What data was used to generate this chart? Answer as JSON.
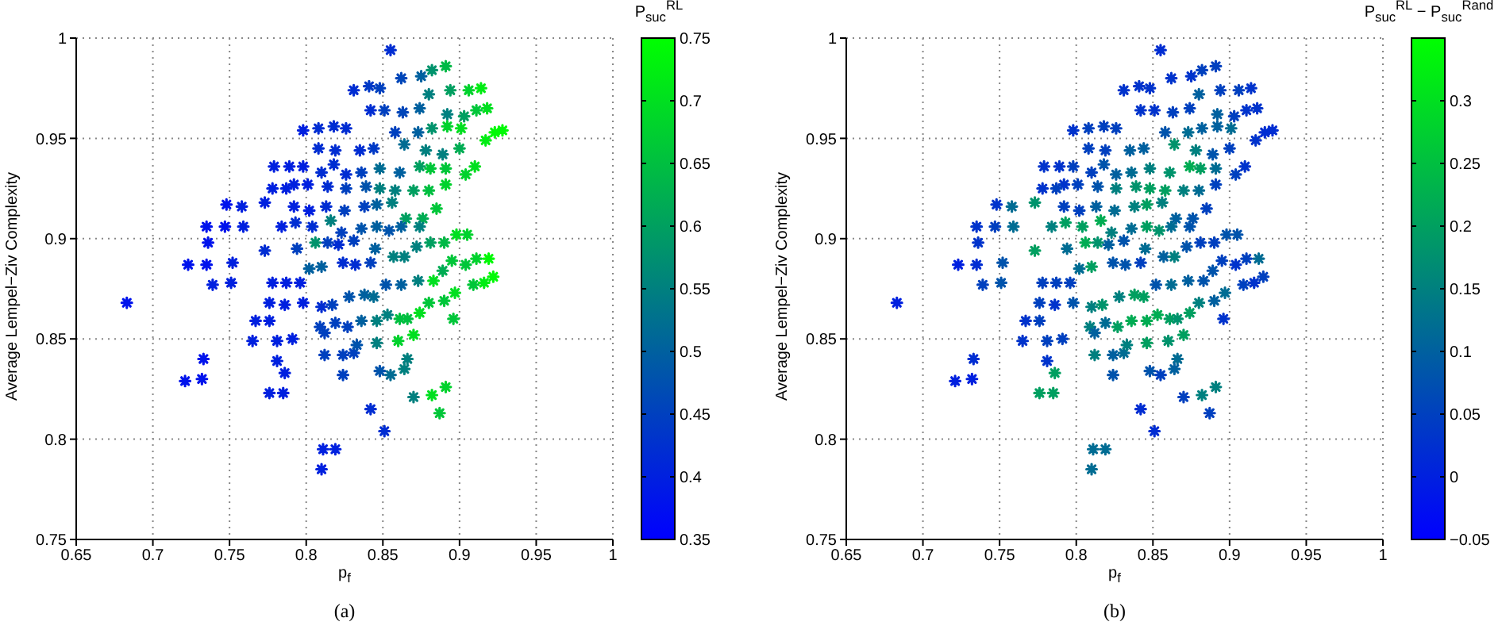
{
  "chart_data": [
    {
      "type": "scatter",
      "xlabel": "p$_{f}$",
      "ylabel": "Average Lempel−Ziv Complexity",
      "clabel": "P$_{suc}$$^{RL}$",
      "annotations": [
        "(a)"
      ],
      "marker": "cross",
      "grid": true,
      "xlim": [
        0.65,
        1
      ],
      "xticks": [
        0.65,
        0.7,
        0.75,
        0.8,
        0.85,
        0.9,
        0.95,
        1
      ],
      "ylim": [
        0.75,
        1
      ],
      "yticks": [
        0.75,
        0.8,
        0.85,
        0.9,
        0.95,
        1
      ],
      "clim": [
        0.35,
        0.75
      ],
      "cticks": [
        0.35,
        0.4,
        0.45,
        0.5,
        0.55,
        0.6,
        0.65,
        0.7,
        0.75
      ],
      "x": [
        0.683,
        0.721,
        0.732,
        0.733,
        0.723,
        0.735,
        0.752,
        0.739,
        0.751,
        0.736,
        0.735,
        0.747,
        0.759,
        0.748,
        0.758,
        0.773,
        0.773,
        0.784,
        0.793,
        0.779,
        0.789,
        0.798,
        0.798,
        0.808,
        0.818,
        0.826,
        0.831,
        0.841,
        0.848,
        0.855,
        0.862,
        0.875,
        0.882,
        0.891,
        0.894,
        0.906,
        0.914,
        0.918,
        0.911,
        0.903,
        0.892,
        0.88,
        0.874,
        0.863,
        0.851,
        0.842,
        0.873,
        0.882,
        0.892,
        0.901,
        0.917,
        0.923,
        0.928,
        0.858,
        0.844,
        0.835,
        0.819,
        0.808,
        0.864,
        0.878,
        0.889,
        0.9,
        0.91,
        0.904,
        0.891,
        0.881,
        0.874,
        0.861,
        0.848,
        0.836,
        0.826,
        0.818,
        0.81,
        0.801,
        0.792,
        0.787,
        0.778,
        0.814,
        0.826,
        0.839,
        0.848,
        0.858,
        0.87,
        0.88,
        0.891,
        0.885,
        0.876,
        0.865,
        0.856,
        0.846,
        0.838,
        0.825,
        0.813,
        0.802,
        0.792,
        0.804,
        0.816,
        0.823,
        0.836,
        0.846,
        0.854,
        0.862,
        0.874,
        0.794,
        0.806,
        0.814,
        0.821,
        0.831,
        0.845,
        0.857,
        0.864,
        0.872,
        0.881,
        0.89,
        0.898,
        0.905,
        0.895,
        0.904,
        0.911,
        0.919,
        0.922,
        0.916,
        0.909,
        0.897,
        0.889,
        0.883,
        0.873,
        0.862,
        0.852,
        0.842,
        0.824,
        0.832,
        0.81,
        0.802,
        0.796,
        0.787,
        0.778,
        0.776,
        0.786,
        0.798,
        0.81,
        0.817,
        0.828,
        0.838,
        0.844,
        0.853,
        0.861,
        0.866,
        0.874,
        0.88,
        0.89,
        0.896,
        0.767,
        0.776,
        0.809,
        0.819,
        0.827,
        0.836,
        0.846,
        0.765,
        0.781,
        0.791,
        0.812,
        0.846,
        0.86,
        0.87,
        0.812,
        0.824,
        0.831,
        0.833,
        0.866,
        0.781,
        0.786,
        0.776,
        0.785,
        0.824,
        0.848,
        0.855,
        0.864,
        0.87,
        0.882,
        0.891,
        0.887,
        0.842,
        0.851,
        0.811,
        0.819,
        0.81
      ],
      "values": [
        0.868,
        0.829,
        0.83,
        0.84,
        0.887,
        0.887,
        0.888,
        0.877,
        0.878,
        0.898,
        0.906,
        0.906,
        0.906,
        0.917,
        0.916,
        0.918,
        0.894,
        0.906,
        0.908,
        0.936,
        0.936,
        0.936,
        0.954,
        0.955,
        0.956,
        0.955,
        0.974,
        0.976,
        0.975,
        0.994,
        0.98,
        0.981,
        0.984,
        0.986,
        0.974,
        0.974,
        0.975,
        0.965,
        0.964,
        0.961,
        0.962,
        0.972,
        0.965,
        0.963,
        0.964,
        0.964,
        0.953,
        0.955,
        0.956,
        0.955,
        0.949,
        0.953,
        0.954,
        0.953,
        0.945,
        0.944,
        0.944,
        0.945,
        0.947,
        0.944,
        0.942,
        0.945,
        0.936,
        0.932,
        0.935,
        0.935,
        0.936,
        0.933,
        0.935,
        0.933,
        0.932,
        0.937,
        0.933,
        0.927,
        0.927,
        0.925,
        0.925,
        0.926,
        0.925,
        0.926,
        0.925,
        0.924,
        0.924,
        0.924,
        0.927,
        0.915,
        0.91,
        0.91,
        0.918,
        0.917,
        0.916,
        0.914,
        0.916,
        0.914,
        0.916,
        0.906,
        0.909,
        0.903,
        0.905,
        0.906,
        0.904,
        0.906,
        0.906,
        0.895,
        0.898,
        0.898,
        0.897,
        0.899,
        0.895,
        0.891,
        0.891,
        0.896,
        0.898,
        0.898,
        0.902,
        0.902,
        0.889,
        0.887,
        0.89,
        0.89,
        0.881,
        0.878,
        0.877,
        0.873,
        0.884,
        0.879,
        0.879,
        0.877,
        0.877,
        0.888,
        0.888,
        0.887,
        0.886,
        0.885,
        0.878,
        0.878,
        0.878,
        0.868,
        0.867,
        0.868,
        0.866,
        0.867,
        0.871,
        0.872,
        0.871,
        0.862,
        0.86,
        0.86,
        0.863,
        0.868,
        0.869,
        0.86,
        0.859,
        0.859,
        0.856,
        0.858,
        0.856,
        0.859,
        0.859,
        0.849,
        0.849,
        0.85,
        0.853,
        0.848,
        0.849,
        0.852,
        0.842,
        0.842,
        0.843,
        0.847,
        0.84,
        0.839,
        0.833,
        0.823,
        0.823,
        0.832,
        0.834,
        0.832,
        0.835,
        0.821,
        0.822,
        0.826,
        0.813,
        0.815,
        0.804,
        0.795,
        0.795,
        0.785
      ],
      "cvalues": [
        0.38,
        0.38,
        0.38,
        0.38,
        0.38,
        0.38,
        0.4,
        0.4,
        0.4,
        0.38,
        0.38,
        0.38,
        0.4,
        0.38,
        0.4,
        0.4,
        0.42,
        0.4,
        0.42,
        0.4,
        0.4,
        0.4,
        0.4,
        0.42,
        0.42,
        0.42,
        0.42,
        0.44,
        0.45,
        0.42,
        0.46,
        0.5,
        0.58,
        0.64,
        0.6,
        0.68,
        0.72,
        0.7,
        0.66,
        0.6,
        0.55,
        0.55,
        0.5,
        0.46,
        0.45,
        0.42,
        0.5,
        0.58,
        0.68,
        0.7,
        0.72,
        0.74,
        0.74,
        0.45,
        0.44,
        0.42,
        0.42,
        0.42,
        0.52,
        0.55,
        0.55,
        0.62,
        0.7,
        0.68,
        0.66,
        0.66,
        0.6,
        0.5,
        0.52,
        0.45,
        0.42,
        0.42,
        0.42,
        0.4,
        0.4,
        0.4,
        0.4,
        0.42,
        0.45,
        0.48,
        0.55,
        0.55,
        0.6,
        0.65,
        0.68,
        0.66,
        0.62,
        0.6,
        0.55,
        0.5,
        0.45,
        0.45,
        0.42,
        0.4,
        0.4,
        0.42,
        0.55,
        0.45,
        0.48,
        0.5,
        0.48,
        0.5,
        0.55,
        0.45,
        0.58,
        0.45,
        0.42,
        0.45,
        0.5,
        0.55,
        0.55,
        0.55,
        0.6,
        0.64,
        0.7,
        0.68,
        0.66,
        0.66,
        0.68,
        0.74,
        0.74,
        0.72,
        0.66,
        0.7,
        0.62,
        0.7,
        0.55,
        0.5,
        0.48,
        0.45,
        0.42,
        0.42,
        0.5,
        0.5,
        0.4,
        0.4,
        0.4,
        0.4,
        0.4,
        0.4,
        0.42,
        0.45,
        0.48,
        0.5,
        0.52,
        0.55,
        0.65,
        0.65,
        0.7,
        0.66,
        0.66,
        0.66,
        0.4,
        0.4,
        0.45,
        0.45,
        0.45,
        0.5,
        0.55,
        0.4,
        0.4,
        0.4,
        0.45,
        0.55,
        0.68,
        0.7,
        0.45,
        0.45,
        0.45,
        0.48,
        0.55,
        0.4,
        0.4,
        0.4,
        0.4,
        0.45,
        0.48,
        0.52,
        0.55,
        0.55,
        0.7,
        0.68,
        0.66,
        0.42,
        0.42,
        0.4,
        0.4,
        0.4
      ]
    },
    {
      "type": "scatter",
      "xlabel": "p$_{f}$",
      "ylabel": "Average Lempel−Ziv Complexity",
      "clabel": "P$_{suc}$$^{RL}$ − P$_{suc}$$^{Rand}$",
      "annotations": [
        "(b)"
      ],
      "marker": "cross",
      "grid": true,
      "xlim": [
        0.65,
        1
      ],
      "xticks": [
        0.65,
        0.7,
        0.75,
        0.8,
        0.85,
        0.9,
        0.95,
        1
      ],
      "ylim": [
        0.75,
        1
      ],
      "yticks": [
        0.75,
        0.8,
        0.85,
        0.9,
        0.95,
        1
      ],
      "clim": [
        -0.05,
        0.35
      ],
      "cticks": [
        {
          "value": -0.05,
          "label": "−0.05"
        },
        0,
        0.05,
        0.1,
        0.15,
        0.2,
        0.25,
        0.3
      ],
      "x": [
        0.683,
        0.721,
        0.732,
        0.733,
        0.723,
        0.735,
        0.752,
        0.739,
        0.751,
        0.736,
        0.735,
        0.747,
        0.759,
        0.748,
        0.758,
        0.773,
        0.773,
        0.784,
        0.793,
        0.779,
        0.789,
        0.798,
        0.798,
        0.808,
        0.818,
        0.826,
        0.831,
        0.841,
        0.848,
        0.855,
        0.862,
        0.875,
        0.882,
        0.891,
        0.894,
        0.906,
        0.914,
        0.918,
        0.911,
        0.903,
        0.892,
        0.88,
        0.874,
        0.863,
        0.851,
        0.842,
        0.873,
        0.882,
        0.892,
        0.901,
        0.917,
        0.923,
        0.928,
        0.858,
        0.844,
        0.835,
        0.819,
        0.808,
        0.864,
        0.878,
        0.889,
        0.9,
        0.91,
        0.904,
        0.891,
        0.881,
        0.874,
        0.861,
        0.848,
        0.836,
        0.826,
        0.818,
        0.81,
        0.801,
        0.792,
        0.787,
        0.778,
        0.814,
        0.826,
        0.839,
        0.848,
        0.858,
        0.87,
        0.88,
        0.891,
        0.885,
        0.876,
        0.865,
        0.856,
        0.846,
        0.838,
        0.825,
        0.813,
        0.802,
        0.792,
        0.804,
        0.816,
        0.823,
        0.836,
        0.846,
        0.854,
        0.862,
        0.874,
        0.794,
        0.806,
        0.814,
        0.821,
        0.831,
        0.845,
        0.857,
        0.864,
        0.872,
        0.881,
        0.89,
        0.898,
        0.905,
        0.895,
        0.904,
        0.911,
        0.919,
        0.922,
        0.916,
        0.909,
        0.897,
        0.889,
        0.883,
        0.873,
        0.862,
        0.852,
        0.842,
        0.824,
        0.832,
        0.81,
        0.802,
        0.796,
        0.787,
        0.778,
        0.776,
        0.786,
        0.798,
        0.81,
        0.817,
        0.828,
        0.838,
        0.844,
        0.853,
        0.861,
        0.866,
        0.874,
        0.88,
        0.89,
        0.896,
        0.767,
        0.776,
        0.809,
        0.819,
        0.827,
        0.836,
        0.846,
        0.765,
        0.781,
        0.791,
        0.812,
        0.846,
        0.86,
        0.87,
        0.812,
        0.824,
        0.831,
        0.833,
        0.866,
        0.781,
        0.786,
        0.776,
        0.785,
        0.824,
        0.848,
        0.855,
        0.864,
        0.87,
        0.882,
        0.891,
        0.887,
        0.842,
        0.851,
        0.811,
        0.819,
        0.81
      ],
      "values": [
        0.868,
        0.829,
        0.83,
        0.84,
        0.887,
        0.887,
        0.888,
        0.877,
        0.878,
        0.898,
        0.906,
        0.906,
        0.906,
        0.917,
        0.916,
        0.918,
        0.894,
        0.906,
        0.908,
        0.936,
        0.936,
        0.936,
        0.954,
        0.955,
        0.956,
        0.955,
        0.974,
        0.976,
        0.975,
        0.994,
        0.98,
        0.981,
        0.984,
        0.986,
        0.974,
        0.974,
        0.975,
        0.965,
        0.964,
        0.961,
        0.962,
        0.972,
        0.965,
        0.963,
        0.964,
        0.964,
        0.953,
        0.955,
        0.956,
        0.955,
        0.949,
        0.953,
        0.954,
        0.953,
        0.945,
        0.944,
        0.944,
        0.945,
        0.947,
        0.944,
        0.942,
        0.945,
        0.936,
        0.932,
        0.935,
        0.935,
        0.936,
        0.933,
        0.935,
        0.933,
        0.932,
        0.937,
        0.933,
        0.927,
        0.927,
        0.925,
        0.925,
        0.926,
        0.925,
        0.926,
        0.925,
        0.924,
        0.924,
        0.924,
        0.927,
        0.915,
        0.91,
        0.91,
        0.918,
        0.917,
        0.916,
        0.914,
        0.916,
        0.914,
        0.916,
        0.906,
        0.909,
        0.903,
        0.905,
        0.906,
        0.904,
        0.906,
        0.906,
        0.895,
        0.898,
        0.898,
        0.897,
        0.899,
        0.895,
        0.891,
        0.891,
        0.896,
        0.898,
        0.898,
        0.902,
        0.902,
        0.889,
        0.887,
        0.89,
        0.89,
        0.881,
        0.878,
        0.877,
        0.873,
        0.884,
        0.879,
        0.879,
        0.877,
        0.877,
        0.888,
        0.888,
        0.887,
        0.886,
        0.885,
        0.878,
        0.878,
        0.878,
        0.868,
        0.867,
        0.868,
        0.866,
        0.867,
        0.871,
        0.872,
        0.871,
        0.862,
        0.86,
        0.86,
        0.863,
        0.868,
        0.869,
        0.86,
        0.859,
        0.859,
        0.856,
        0.858,
        0.856,
        0.859,
        0.859,
        0.849,
        0.849,
        0.85,
        0.853,
        0.848,
        0.849,
        0.852,
        0.842,
        0.842,
        0.843,
        0.847,
        0.84,
        0.839,
        0.833,
        0.823,
        0.823,
        0.832,
        0.834,
        0.832,
        0.835,
        0.821,
        0.822,
        0.826,
        0.813,
        0.815,
        0.804,
        0.795,
        0.795,
        0.785
      ],
      "cvalues": [
        0,
        0,
        0,
        0.02,
        0,
        0.02,
        0.08,
        0.05,
        0.08,
        0.03,
        0.03,
        0.05,
        0.12,
        0.03,
        0.12,
        0.18,
        0.2,
        0.15,
        0.2,
        0.03,
        0.03,
        0.05,
        0.03,
        0.05,
        0.05,
        0.05,
        0.03,
        0.03,
        0.03,
        0.02,
        0.03,
        0.03,
        0.05,
        0.05,
        0.05,
        0.05,
        0.03,
        0.03,
        0.03,
        0.05,
        0.1,
        0.1,
        0.05,
        0.05,
        0.03,
        0.03,
        0.12,
        0.1,
        0.1,
        0.12,
        0.03,
        0.02,
        0.02,
        0.08,
        0.1,
        0.1,
        0.05,
        0.05,
        0.18,
        0.15,
        0.08,
        0.05,
        0.03,
        0.05,
        0.12,
        0.2,
        0.22,
        0.18,
        0.15,
        0.12,
        0.1,
        0.08,
        0.05,
        0.05,
        0.03,
        0.05,
        0.03,
        0.08,
        0.15,
        0.18,
        0.2,
        0.2,
        0.15,
        0.12,
        0.05,
        0.05,
        0.08,
        0.1,
        0.15,
        0.2,
        0.15,
        0.12,
        0.1,
        0.05,
        0.05,
        0.2,
        0.22,
        0.15,
        0.12,
        0.2,
        0.18,
        0.12,
        0.08,
        0.12,
        0.22,
        0.18,
        0.1,
        0.08,
        0.12,
        0.1,
        0.15,
        0.08,
        0.05,
        0.05,
        0.08,
        0.08,
        0.05,
        0.03,
        0.05,
        0.12,
        0.05,
        0.03,
        0.05,
        0.12,
        0.08,
        0.08,
        0.1,
        0.12,
        0.08,
        0.05,
        0.08,
        0.08,
        0.2,
        0.12,
        0.05,
        0.05,
        0.05,
        0.05,
        0.03,
        0.08,
        0.15,
        0.18,
        0.15,
        0.2,
        0.2,
        0.22,
        0.2,
        0.18,
        0.2,
        0.15,
        0.1,
        0.03,
        0.03,
        0.05,
        0.15,
        0.12,
        0.2,
        0.22,
        0.22,
        0.03,
        0.05,
        0.05,
        0.1,
        0.2,
        0.18,
        0.2,
        0.15,
        0.1,
        0.12,
        0.15,
        0.12,
        0.03,
        0.2,
        0.2,
        0.2,
        0.08,
        0.08,
        0.05,
        0.1,
        0.05,
        0.15,
        0.15,
        0.05,
        0.02,
        0.02,
        0.12,
        0.12,
        0.12
      ]
    }
  ]
}
